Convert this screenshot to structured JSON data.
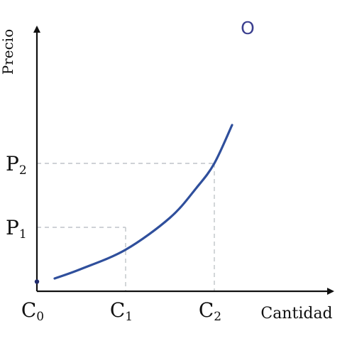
{
  "chart_data": {
    "type": "line",
    "title": "",
    "xlabel": "Cantidad",
    "ylabel": "Precio",
    "series": [
      {
        "name": "O",
        "color": "#2f4f9c",
        "x": [
          0.2,
          0.5,
          1.0,
          1.5,
          1.8,
          2.0,
          2.2
        ],
        "y": [
          0.2,
          0.35,
          0.65,
          1.15,
          1.62,
          2.0,
          2.6
        ]
      }
    ],
    "x_ticks": [
      {
        "value": 0,
        "base": "C",
        "sub": "0"
      },
      {
        "value": 1,
        "base": "C",
        "sub": "1"
      },
      {
        "value": 2,
        "base": "C",
        "sub": "2"
      }
    ],
    "y_ticks": [
      {
        "value": 1,
        "base": "P",
        "sub": "1"
      },
      {
        "value": 2,
        "base": "P",
        "sub": "2"
      }
    ],
    "reference_points": [
      {
        "x": 1,
        "y": 1
      },
      {
        "x": 2,
        "y": 2
      }
    ],
    "start_marker": {
      "x": 0,
      "y": 0.15
    },
    "xlim": [
      0,
      2.6
    ],
    "ylim": [
      0,
      2.8
    ],
    "grid": false,
    "legend": "none",
    "colors": {
      "curve": "#2f4f9c",
      "curve_label": "#3b3f8f",
      "axis": "#111111",
      "guides": "#bfc4c8",
      "marker": "#1f2a6b"
    }
  }
}
